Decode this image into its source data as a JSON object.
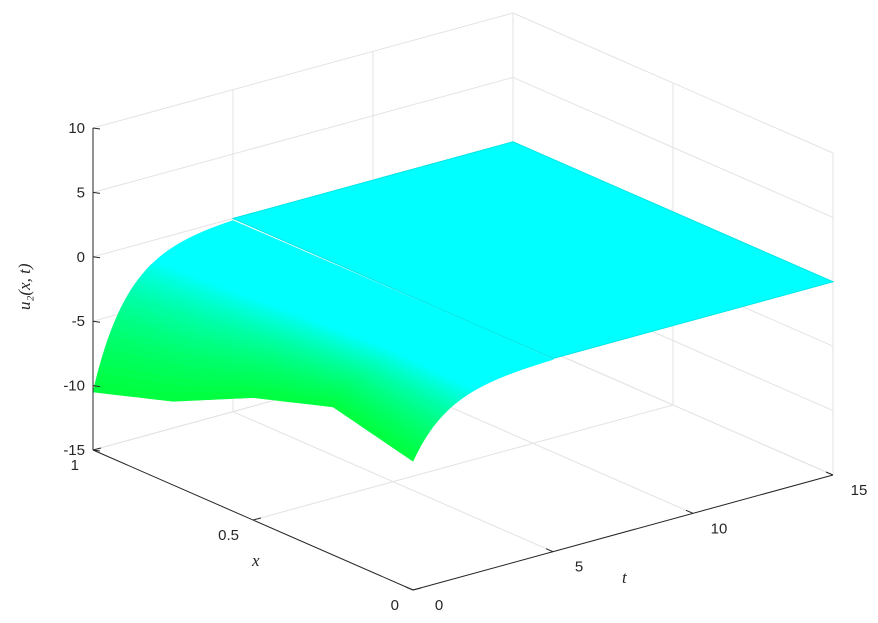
{
  "chart_data": {
    "type": "surface",
    "title": "",
    "xlabel": "t",
    "ylabel": "x",
    "zlabel": "u₂(x, t)",
    "t_range": [
      0,
      15
    ],
    "x_range": [
      0,
      1
    ],
    "z_range": [
      -15,
      10
    ],
    "t_ticks": [
      {
        "value": 0,
        "label": "0"
      },
      {
        "value": 5,
        "label": "5"
      },
      {
        "value": 10,
        "label": "10"
      },
      {
        "value": 15,
        "label": "15"
      }
    ],
    "x_ticks": [
      {
        "value": 0,
        "label": "0"
      },
      {
        "value": 0.5,
        "label": "0.5"
      },
      {
        "value": 1,
        "label": "1"
      }
    ],
    "z_ticks": [
      {
        "value": -15,
        "label": "-15"
      },
      {
        "value": -10,
        "label": "-10"
      },
      {
        "value": -5,
        "label": "-5"
      },
      {
        "value": 0,
        "label": "0"
      },
      {
        "value": 5,
        "label": "5"
      },
      {
        "value": 10,
        "label": "10"
      }
    ],
    "grid": true,
    "surface_values": {
      "at_t0": {
        "x": [
          0,
          0.25,
          0.5,
          0.75,
          1
        ],
        "u": [
          -5,
          -3.5,
          -5.5,
          -8.5,
          -10.5
        ]
      },
      "at_t0_x1_range": [
        -10.5,
        4.5
      ],
      "steady_state": {
        "t_from": 5,
        "u": 0
      }
    },
    "colors": {
      "transient": "#00ff40",
      "steady": "#00ffff",
      "edge": "#00e6e6"
    }
  }
}
